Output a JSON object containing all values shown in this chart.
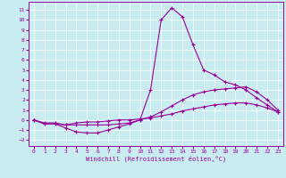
{
  "xlabel": "Windchill (Refroidissement éolien,°C)",
  "bg_color": "#c8ecf0",
  "line_color": "#990099",
  "xlim": [
    -0.5,
    23.5
  ],
  "ylim": [
    -2.6,
    11.8
  ],
  "xticks": [
    0,
    1,
    2,
    3,
    4,
    5,
    6,
    7,
    8,
    9,
    10,
    11,
    12,
    13,
    14,
    15,
    16,
    17,
    18,
    19,
    20,
    21,
    22,
    23
  ],
  "yticks": [
    -2,
    -1,
    0,
    1,
    2,
    3,
    4,
    5,
    6,
    7,
    8,
    9,
    10,
    11
  ],
  "line_spike_x": [
    0,
    1,
    2,
    3,
    4,
    5,
    6,
    7,
    8,
    9,
    10,
    11,
    12,
    13,
    14,
    15,
    16,
    17,
    18,
    19,
    20,
    21,
    22,
    23
  ],
  "line_spike_y": [
    0.0,
    -0.4,
    -0.4,
    -0.5,
    -0.5,
    -0.5,
    -0.5,
    -0.5,
    -0.4,
    -0.3,
    0.0,
    3.0,
    10.0,
    11.2,
    10.3,
    7.5,
    5.0,
    4.5,
    3.8,
    3.5,
    3.0,
    2.2,
    1.5,
    0.8
  ],
  "line_mid_x": [
    0,
    1,
    2,
    3,
    4,
    5,
    6,
    7,
    8,
    9,
    10,
    11,
    12,
    13,
    14,
    15,
    16,
    17,
    18,
    19,
    20,
    21,
    22,
    23
  ],
  "line_mid_y": [
    0.0,
    -0.4,
    -0.4,
    -0.8,
    -1.2,
    -1.3,
    -1.3,
    -1.0,
    -0.7,
    -0.4,
    0.0,
    0.3,
    0.8,
    1.4,
    2.0,
    2.5,
    2.8,
    3.0,
    3.1,
    3.2,
    3.3,
    2.8,
    2.0,
    1.0
  ],
  "line_flat_x": [
    0,
    1,
    2,
    3,
    4,
    5,
    6,
    7,
    8,
    9,
    10,
    11,
    12,
    13,
    14,
    15,
    16,
    17,
    18,
    19,
    20,
    21,
    22,
    23
  ],
  "line_flat_y": [
    0.0,
    -0.3,
    -0.3,
    -0.5,
    -0.3,
    -0.2,
    -0.2,
    -0.1,
    0.0,
    0.0,
    0.1,
    0.2,
    0.4,
    0.6,
    0.9,
    1.1,
    1.3,
    1.5,
    1.6,
    1.7,
    1.7,
    1.5,
    1.2,
    0.8
  ]
}
